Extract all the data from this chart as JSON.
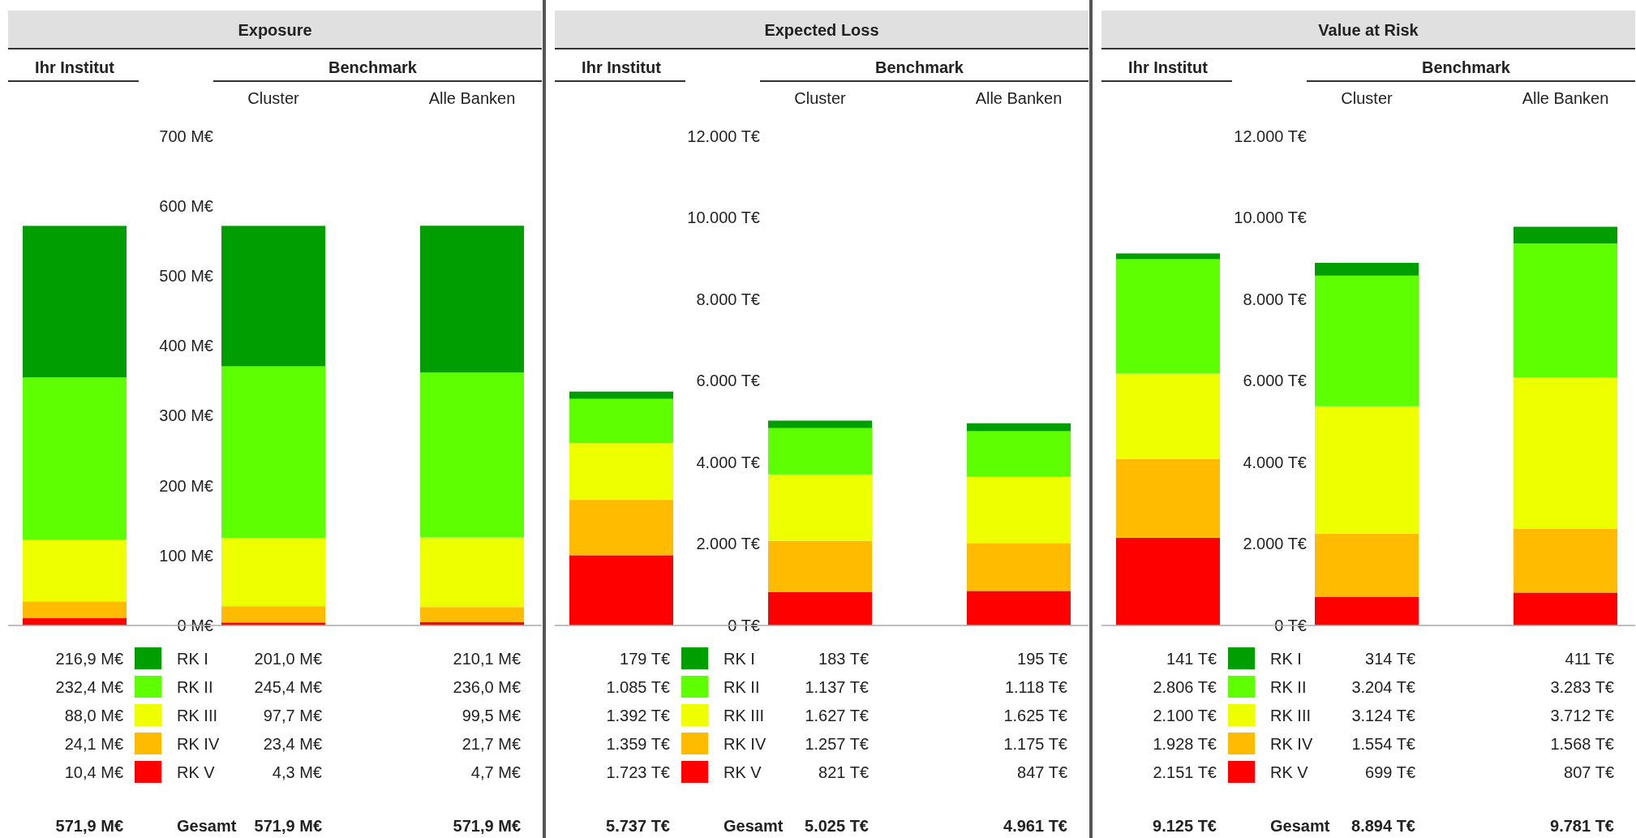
{
  "chart_data": [
    {
      "type": "bar",
      "title": "Exposure",
      "categories": [
        null,
        "Cluster",
        "Alle Banken"
      ],
      "stacked": true,
      "legend": "bottom",
      "ylim": [
        0,
        700
      ],
      "yticks": [
        {
          "value": 0,
          "label": "0 M€"
        },
        {
          "value": 100,
          "label": "100 M€"
        },
        {
          "value": 200,
          "label": "200 M€"
        },
        {
          "value": 300,
          "label": "300 M€"
        },
        {
          "value": 400,
          "label": "400 M€"
        },
        {
          "value": 500,
          "label": "500 M€"
        },
        {
          "value": 600,
          "label": "600 M€"
        },
        {
          "value": 700,
          "label": "700 M€"
        }
      ],
      "series": [
        {
          "name": "RK V",
          "color": "#ff0000",
          "values": [
            10.4,
            4.3,
            4.7
          ],
          "value_labels": [
            "10,4 M€",
            "4,3 M€",
            "4,7 M€"
          ]
        },
        {
          "name": "RK IV",
          "color": "#ffbb00",
          "values": [
            24.1,
            23.4,
            21.7
          ],
          "value_labels": [
            "24,1 M€",
            "23,4 M€",
            "21,7 M€"
          ]
        },
        {
          "name": "RK III",
          "color": "#eeff00",
          "values": [
            88.0,
            97.7,
            99.5
          ],
          "value_labels": [
            "88,0 M€",
            "97,7 M€",
            "99,5 M€"
          ]
        },
        {
          "name": "RK II",
          "color": "#5eff00",
          "values": [
            232.4,
            245.4,
            236.0
          ],
          "value_labels": [
            "232,4 M€",
            "245,4 M€",
            "236,0 M€"
          ]
        },
        {
          "name": "RK I",
          "color": "#009e00",
          "values": [
            216.9,
            201.0,
            210.1
          ],
          "value_labels": [
            "216,9 M€",
            "201,0 M€",
            "210,1 M€"
          ]
        }
      ],
      "annotations": [
        "Ihr Institut",
        "Benchmark",
        "Gesamt",
        "571,9 M€",
        "571,9 M€",
        "571,9 M€"
      ]
    },
    {
      "type": "bar",
      "title": "Expected Loss",
      "categories": [
        null,
        "Cluster",
        "Alle Banken"
      ],
      "stacked": true,
      "legend": "bottom",
      "ylim": [
        0,
        12000
      ],
      "yticks": [
        {
          "value": 0,
          "label": "0 T€"
        },
        {
          "value": 2000,
          "label": "2.000 T€"
        },
        {
          "value": 4000,
          "label": "4.000 T€"
        },
        {
          "value": 6000,
          "label": "6.000 T€"
        },
        {
          "value": 8000,
          "label": "8.000 T€"
        },
        {
          "value": 10000,
          "label": "10.000 T€"
        },
        {
          "value": 12000,
          "label": "12.000 T€"
        }
      ],
      "series": [
        {
          "name": "RK V",
          "color": "#ff0000",
          "values": [
            1723,
            821,
            847
          ],
          "value_labels": [
            "1.723 T€",
            "821 T€",
            "847 T€"
          ]
        },
        {
          "name": "RK IV",
          "color": "#ffbb00",
          "values": [
            1359,
            1257,
            1175
          ],
          "value_labels": [
            "1.359 T€",
            "1.257 T€",
            "1.175 T€"
          ]
        },
        {
          "name": "RK III",
          "color": "#eeff00",
          "values": [
            1392,
            1627,
            1625
          ],
          "value_labels": [
            "1.392 T€",
            "1.627 T€",
            "1.625 T€"
          ]
        },
        {
          "name": "RK II",
          "color": "#5eff00",
          "values": [
            1085,
            1137,
            1118
          ],
          "value_labels": [
            "1.085 T€",
            "1.137 T€",
            "1.118 T€"
          ]
        },
        {
          "name": "RK I",
          "color": "#009e00",
          "values": [
            179,
            183,
            195
          ],
          "value_labels": [
            "179 T€",
            "183 T€",
            "195 T€"
          ]
        }
      ],
      "annotations": [
        "Ihr Institut",
        "Benchmark",
        "Gesamt",
        "5.737 T€",
        "5.025 T€",
        "4.961 T€"
      ]
    },
    {
      "type": "bar",
      "title": "Value at Risk",
      "categories": [
        null,
        "Cluster",
        "Alle Banken"
      ],
      "stacked": true,
      "legend": "bottom",
      "ylim": [
        0,
        12000
      ],
      "yticks": [
        {
          "value": 0,
          "label": "0 T€"
        },
        {
          "value": 2000,
          "label": "2.000 T€"
        },
        {
          "value": 4000,
          "label": "4.000 T€"
        },
        {
          "value": 6000,
          "label": "6.000 T€"
        },
        {
          "value": 8000,
          "label": "8.000 T€"
        },
        {
          "value": 10000,
          "label": "10.000 T€"
        },
        {
          "value": 12000,
          "label": "12.000 T€"
        }
      ],
      "series": [
        {
          "name": "RK V",
          "color": "#ff0000",
          "values": [
            2151,
            699,
            807
          ],
          "value_labels": [
            "2.151 T€",
            "699 T€",
            "807 T€"
          ]
        },
        {
          "name": "RK IV",
          "color": "#ffbb00",
          "values": [
            1928,
            1554,
            1568
          ],
          "value_labels": [
            "1.928 T€",
            "1.554 T€",
            "1.568 T€"
          ]
        },
        {
          "name": "RK III",
          "color": "#eeff00",
          "values": [
            2100,
            3124,
            3712
          ],
          "value_labels": [
            "2.100 T€",
            "3.124 T€",
            "3.712 T€"
          ]
        },
        {
          "name": "RK II",
          "color": "#5eff00",
          "values": [
            2806,
            3204,
            3283
          ],
          "value_labels": [
            "2.806 T€",
            "3.204 T€",
            "3.283 T€"
          ]
        },
        {
          "name": "RK I",
          "color": "#009e00",
          "values": [
            141,
            314,
            411
          ],
          "value_labels": [
            "141 T€",
            "314 T€",
            "411 T€"
          ]
        }
      ],
      "annotations": [
        "Ihr Institut",
        "Benchmark",
        "Gesamt",
        "9.125 T€",
        "8.894 T€",
        "9.781 T€"
      ]
    }
  ]
}
